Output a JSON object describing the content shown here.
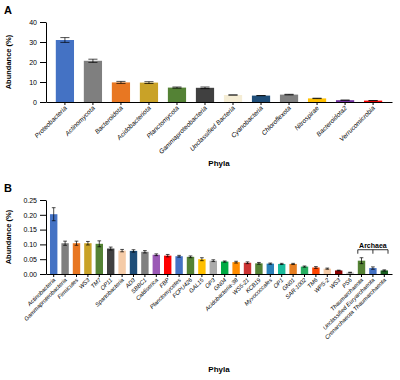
{
  "chart_data": [
    {
      "type": "bar",
      "title": "A",
      "categories": [
        "Proteobacteria",
        "Actinomycota",
        "Bacteroidota",
        "Acidobacteriota",
        "Planctomycota",
        "Gammaproteobacteria",
        "Unclassified Bacteria",
        "Cyanobacteria",
        "Chloroflexota",
        "Nitrospirae",
        "Bacteroidota2",
        "Verrucomicrobia"
      ],
      "values": [
        31.0,
        20.6,
        9.8,
        9.7,
        7.2,
        7.1,
        3.5,
        3.2,
        3.7,
        1.8,
        0.9,
        0.7
      ],
      "errors": [
        1.2,
        0.8,
        0.5,
        0.45,
        0.3,
        0.4,
        0.0,
        0.0,
        0.15,
        0.1,
        0.06,
        0.05
      ],
      "colors": [
        "#4472C4",
        "#7F7F7F",
        "#E87722",
        "#C9A227",
        "#548235",
        "#404040",
        "#F5EDD5",
        "#1F4E79",
        "#808080",
        "#FFC000",
        "#7030A0",
        "#FF0000"
      ],
      "ylabel": "Abundance (%)",
      "xlabel": "Phyla",
      "ylim": [
        0,
        40
      ],
      "yticks": [
        0,
        10,
        20,
        30,
        40
      ],
      "grid": false
    },
    {
      "type": "bar",
      "title": "B",
      "categories": [
        "Actinobacteria",
        "Gammaproteobacteria",
        "Firmicutes",
        "WS3",
        "TM7",
        "OP11",
        "Spartobacteria",
        "AD3",
        "SBBC1",
        "Caldiserica",
        "FBP",
        "Planctomycetes",
        "FCPU426",
        "GAL15",
        "OP3",
        "GN04",
        "Acidobacteria-38",
        "WS5-21",
        "KCB19",
        "Myxococcales",
        "OP1",
        "GN01",
        "SAR-1002",
        "TM6",
        "WPS-2",
        "WS3",
        "PS6",
        "Thaumarchaeota",
        "Unclassified Euryarchaeota",
        "Crenarchaeota Thaumarchaeota"
      ],
      "values": [
        0.202,
        0.104,
        0.104,
        0.104,
        0.102,
        0.086,
        0.079,
        0.078,
        0.075,
        0.065,
        0.062,
        0.06,
        0.058,
        0.05,
        0.045,
        0.042,
        0.04,
        0.038,
        0.036,
        0.035,
        0.034,
        0.034,
        0.025,
        0.022,
        0.018,
        0.012,
        0.005,
        0.045,
        0.02,
        0.012
      ],
      "errors": [
        0.022,
        0.007,
        0.007,
        0.006,
        0.01,
        0.005,
        0.004,
        0.004,
        0.004,
        0.003,
        0.004,
        0.003,
        0.003,
        0.005,
        0.003,
        0.002,
        0.003,
        0.003,
        0.003,
        0.002,
        0.002,
        0.002,
        0.002,
        0.003,
        0.002,
        0.001,
        0.001,
        0.01,
        0.004,
        0.002
      ],
      "colors": [
        "#4472C4",
        "#7F7F7F",
        "#E87722",
        "#C9A227",
        "#548235",
        "#404040",
        "#F5CBA7",
        "#1F4E79",
        "#808080",
        "#9B59B6",
        "#FF0000",
        "#4472C4",
        "#548235",
        "#FFC000",
        "#AAAAAA",
        "#00AA44",
        "#FF8C00",
        "#CC3333",
        "#548235",
        "#2980B9",
        "#1ABC9C",
        "#E67E22",
        "#27AE60",
        "#FF4500",
        "#F5CBA7",
        "#8B0000",
        "#C0C0C0",
        "#548235",
        "#4472C4",
        "#1A5E20"
      ],
      "ylabel": "Abundance (%)",
      "xlabel": "Phyla",
      "ylim": [
        0,
        0.25
      ],
      "yticks": [
        {
          "value": 0,
          "label": "0.00"
        },
        0.05,
        {
          "value": 0.1,
          "label": "0.10"
        },
        0.15,
        {
          "value": 0.2,
          "label": "0.20"
        },
        0.25
      ],
      "grid": false,
      "annotations": [
        {
          "text": "Archaea",
          "categories": [
            "Thaumarchaeota",
            "Unclassified Euryarchaeota",
            "Crenarchaeota Thaumarchaeota"
          ]
        }
      ]
    }
  ]
}
